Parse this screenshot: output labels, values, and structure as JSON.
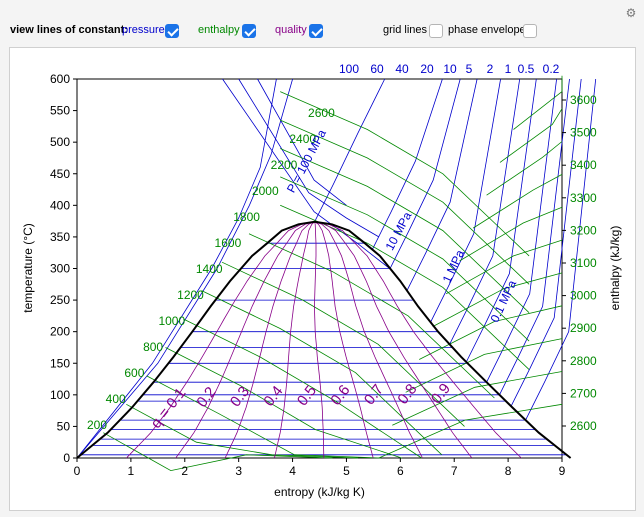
{
  "controls": {
    "view_label": "view lines of constant:",
    "pressure_label": "pressure",
    "pressure_checked": true,
    "enthalpy_label": "enthalpy",
    "enthalpy_checked": true,
    "quality_label": "quality",
    "quality_checked": true,
    "grid_label": "grid lines",
    "grid_checked": false,
    "envelope_label": "phase envelope",
    "envelope_checked": false,
    "settings_icon": "gear-icon"
  },
  "colors": {
    "pressure": "#0000cc",
    "enthalpy": "#008800",
    "quality": "#880088",
    "envelope": "#000000",
    "checkbox_on": "#1a73e8"
  },
  "chart_data": {
    "type": "line",
    "xlabel": "entropy (kJ/kg K)",
    "ylabel": "temperature (°C)",
    "y2label": "enthalpy (kJ/kg)",
    "xlim": [
      0,
      9.1
    ],
    "ylim": [
      0,
      600
    ],
    "xticks": [
      "0",
      "1",
      "2",
      "3",
      "4",
      "5",
      "6",
      "7",
      "8",
      "9"
    ],
    "yticks": [
      "0",
      "50",
      "100",
      "150",
      "200",
      "250",
      "300",
      "350",
      "400",
      "450",
      "500",
      "550",
      "600"
    ],
    "enthalpy_right_ticks": [
      "2600",
      "2700",
      "2800",
      "2900",
      "3000",
      "3100",
      "3200",
      "3300",
      "3400",
      "3500",
      "3600"
    ],
    "enthalpy_left_labels": [
      "200",
      "400",
      "600",
      "800",
      "1000",
      "1200",
      "1400",
      "1600",
      "1800",
      "2000",
      "2200",
      "2400",
      "2600"
    ],
    "pressure_top_labels": [
      "100",
      "60",
      "40",
      "20",
      "10",
      "5",
      "2",
      "1",
      "0.5",
      "0.2"
    ],
    "pressure_line_labels": [
      "P = 100 MPa",
      "10 MPa",
      "1 MPa",
      "0.1 MPa"
    ],
    "quality_labels": [
      "q = 0.1",
      "0.2",
      "0.3",
      "0.4",
      "0.5",
      "0.6",
      "0.7",
      "0.8",
      "0.9"
    ],
    "critical_point": {
      "s": 4.41,
      "T": 374
    },
    "saturated_liquid": [
      [
        0,
        0
      ],
      [
        0.57,
        40
      ],
      [
        1.02,
        80
      ],
      [
        1.42,
        120
      ],
      [
        1.79,
        160
      ],
      [
        2.14,
        200
      ],
      [
        2.48,
        240
      ],
      [
        2.84,
        280
      ],
      [
        3.25,
        320
      ],
      [
        3.53,
        340
      ],
      [
        3.8,
        360
      ],
      [
        4.11,
        370
      ],
      [
        4.41,
        374
      ]
    ],
    "saturated_vapor": [
      [
        4.41,
        374
      ],
      [
        4.73,
        370
      ],
      [
        5.05,
        360
      ],
      [
        5.34,
        340
      ],
      [
        5.62,
        320
      ],
      [
        6.0,
        280
      ],
      [
        6.33,
        240
      ],
      [
        6.7,
        200
      ],
      [
        7.13,
        160
      ],
      [
        7.6,
        120
      ],
      [
        8.08,
        80
      ],
      [
        8.57,
        40
      ],
      [
        9.16,
        0
      ]
    ]
  }
}
